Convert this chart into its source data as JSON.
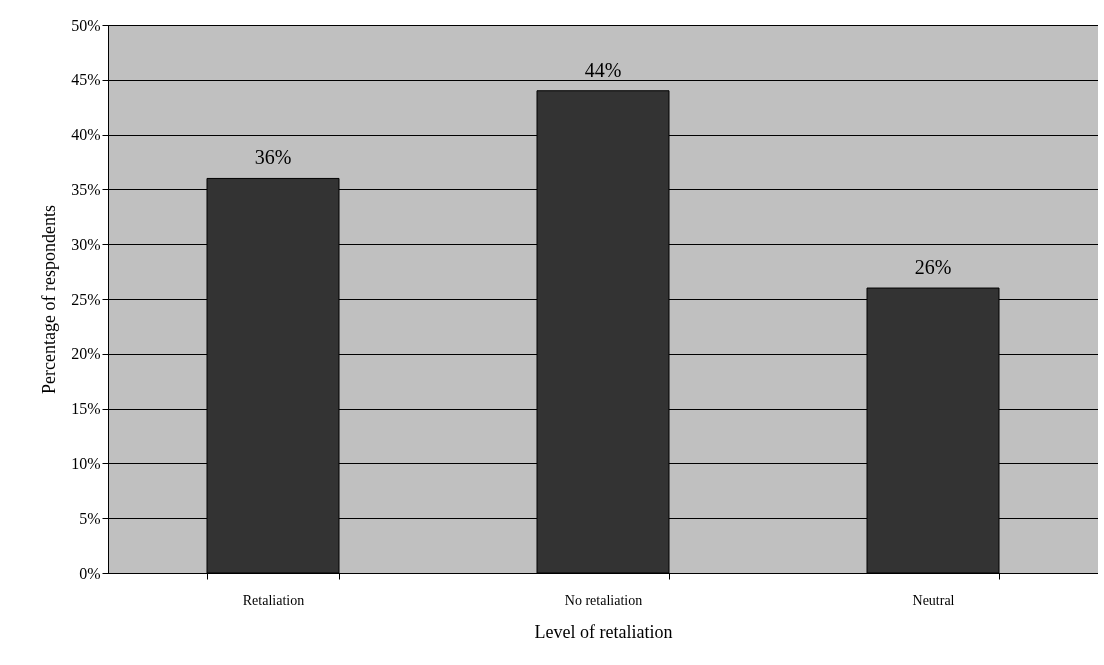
{
  "chart_data": {
    "type": "bar",
    "xlabel": "Level of retaliation",
    "ylabel": "Percentage of respondents",
    "categories": [
      "Retaliation",
      "No retaliation",
      "Neutral"
    ],
    "values": [
      36,
      44,
      26
    ],
    "value_labels": [
      "36%",
      "44%",
      "26%"
    ],
    "color": "#333333",
    "ylim": [
      0,
      50
    ],
    "yticks": [
      {
        "value": 0,
        "label": "0%"
      },
      {
        "value": 5,
        "label": "5%"
      },
      {
        "value": 10,
        "label": "10%"
      },
      {
        "value": 15,
        "label": "15%"
      },
      {
        "value": 20,
        "label": "20%"
      },
      {
        "value": 25,
        "label": "25%"
      },
      {
        "value": 30,
        "label": "30%"
      },
      {
        "value": 35,
        "label": "35%"
      },
      {
        "value": 40,
        "label": "40%"
      },
      {
        "value": 45,
        "label": "45%"
      },
      {
        "value": 50,
        "label": "50%"
      }
    ],
    "grid": "y"
  }
}
